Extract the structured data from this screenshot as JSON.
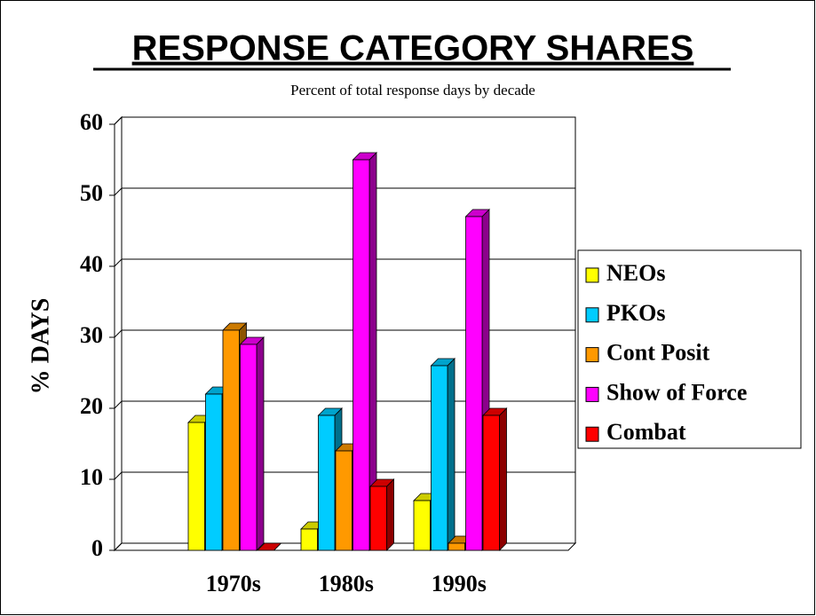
{
  "chart_data": {
    "type": "bar3d",
    "title": "RESPONSE CATEGORY SHARES",
    "subtitle": "Percent of total response days by decade",
    "y_label": "% DAYS",
    "categories": [
      "1970s",
      "1980s",
      "1990s"
    ],
    "series": [
      {
        "name": "NEOs",
        "color": "#ffff00",
        "values": [
          18,
          3,
          7
        ]
      },
      {
        "name": "PKOs",
        "color": "#00ccff",
        "values": [
          22,
          19,
          26
        ]
      },
      {
        "name": "Cont Posit",
        "color": "#ff9900",
        "values": [
          31,
          14,
          1
        ]
      },
      {
        "name": "Show of Force",
        "color": "#ff00ff",
        "values": [
          29,
          55,
          47
        ]
      },
      {
        "name": "Combat",
        "color": "#ff0000",
        "values": [
          0,
          9,
          19
        ]
      }
    ],
    "ylim": [
      0,
      60
    ],
    "yticks": [
      0,
      10,
      20,
      30,
      40,
      50,
      60
    ],
    "grid": true,
    "legend": "right"
  }
}
